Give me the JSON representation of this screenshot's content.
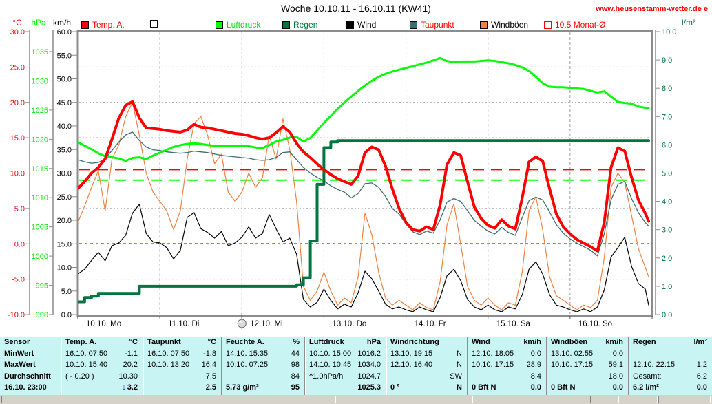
{
  "header": {
    "title": "Woche 10.10.11 - 16.10.11 (KW41)",
    "website": "www.heusenstamm-wetter.de e"
  },
  "legend": {
    "items": [
      {
        "label": "Temp. A.",
        "swatch_fill": "#ff0000",
        "swatch_border": "#000000",
        "text_color": "#ff0000"
      },
      {
        "label": "",
        "swatch_fill": "#ffffff",
        "swatch_border": "#000000",
        "text_color": "#000000"
      },
      {
        "label": "Luftdruck",
        "swatch_fill": "#00ff00",
        "swatch_border": "#000000",
        "text_color": "#00e000"
      },
      {
        "label": "Regen",
        "swatch_fill": "#007540",
        "swatch_border": "#000000",
        "text_color": "#007540"
      },
      {
        "label": "Wind",
        "swatch_fill": "#000000",
        "swatch_border": "#000000",
        "text_color": "#000000"
      },
      {
        "label": "Taupunkt",
        "swatch_fill": "#3d6e6e",
        "swatch_border": "#000000",
        "text_color": "#ff0000"
      },
      {
        "label": "Windböen",
        "swatch_fill": "#f0813f",
        "swatch_border": "#000000",
        "text_color": "#000000"
      },
      {
        "label": "10.5 Monat-Ø",
        "swatch_fill": "#ffffff",
        "swatch_border": "#ff0000",
        "text_color": "#ff0000"
      }
    ]
  },
  "chart_data": {
    "type": "line",
    "title": "Woche 10.10.11 - 16.10.11 (KW41)",
    "x_unit": "hours",
    "sample_interval_hours": 2,
    "x_labels": [
      "10.10. Mo",
      "11.10. Di",
      "12.10. Mi",
      "13.10. Do",
      "14.10. Fr",
      "15.10. Sa",
      "16.10. So"
    ],
    "grid": true,
    "marker_day_index": 2,
    "axes": {
      "temp": {
        "label": "°C",
        "color": "#ff0000",
        "min": -10,
        "max": 30,
        "ticks": [
          "30.0",
          "25.0",
          "20.0",
          "15.0",
          "10.0",
          "5.0",
          "0.0",
          "-5.0",
          "-10.0"
        ]
      },
      "pressure": {
        "label": "hPa",
        "color": "#00ff00",
        "min": 990,
        "max": 1035,
        "ticks": [
          "1035",
          "1030",
          "1025",
          "1020",
          "1015",
          "1010",
          "1005",
          "1000",
          "995",
          "990"
        ]
      },
      "wind": {
        "label": "km/h",
        "color": "#000000",
        "min": 0,
        "max": 60,
        "ticks": [
          "60.0",
          "55.0",
          "50.0",
          "45.0",
          "40.0",
          "35.0",
          "30.0",
          "25.0",
          "20.0",
          "15.0",
          "10.0",
          "5.0",
          "0.0"
        ]
      },
      "rain": {
        "label": "l/m²",
        "color": "#007540",
        "min": 0,
        "max": 10,
        "ticks": [
          "10.0",
          "9.0",
          "8.0",
          "7.0",
          "6.0",
          "5.0",
          "4.0",
          "3.0",
          "2.0",
          "1.0",
          "0.0"
        ]
      }
    },
    "reference_lines": [
      {
        "name": "Monat-Ø Temperatur",
        "axis": "temp",
        "value": 10.5,
        "color": "#ff0000",
        "style": "dashed"
      },
      {
        "name": "Monat-Ø Luftdruck",
        "axis": "pressure",
        "value": 1013,
        "color": "#00ff00",
        "style": "dashed"
      },
      {
        "name": "Nullgradgrenze",
        "axis": "temp",
        "value": 0,
        "color": "#0000ff",
        "style": "dotted"
      }
    ],
    "series": [
      {
        "name": "Windböen",
        "axis": "wind",
        "color": "#f0813f",
        "width": 1.2,
        "values": [
          19.5,
          23,
          27,
          30.5,
          22,
          33,
          36,
          42,
          45,
          38,
          30,
          26,
          24,
          22,
          18,
          22,
          33,
          40.5,
          42,
          38,
          32,
          34,
          26,
          24,
          26,
          30,
          27,
          29,
          38,
          33,
          41.5,
          35,
          24,
          6,
          3,
          5,
          9,
          5,
          2,
          3.5,
          2.5,
          8,
          21.5,
          17,
          9,
          3.5,
          2,
          3,
          2,
          1,
          2.5,
          1.5,
          1,
          7,
          19,
          23.5,
          15,
          6,
          3,
          2,
          3.5,
          2,
          1,
          2.5,
          2,
          9,
          22,
          25,
          18,
          8,
          4,
          3,
          2,
          1,
          2,
          1.5,
          3,
          12,
          27,
          30,
          28,
          21,
          14,
          10,
          8
        ]
      },
      {
        "name": "Wind",
        "axis": "wind",
        "color": "#000000",
        "width": 1.2,
        "values": [
          8.6,
          9.6,
          11.5,
          13.2,
          11.4,
          14.6,
          15.2,
          16.8,
          21.5,
          23.4,
          17.2,
          15.4,
          15.2,
          14.2,
          11.8,
          13.6,
          20.6,
          21.6,
          18.2,
          17.4,
          16.2,
          17.6,
          14.6,
          15.2,
          16.4,
          18.6,
          16.2,
          17.2,
          21.2,
          18.2,
          15.4,
          16.2,
          12.8,
          3.2,
          1.6,
          2.6,
          5.4,
          3,
          1.2,
          2.2,
          1.6,
          4.6,
          9.2,
          7.6,
          5,
          2.2,
          1.2,
          1.6,
          1,
          0.6,
          1.6,
          1,
          0.6,
          3.6,
          8.2,
          9.6,
          7.2,
          3.2,
          1.6,
          1,
          2,
          1,
          0.6,
          1.6,
          1.2,
          4.2,
          9.6,
          11.2,
          8.6,
          4.2,
          2,
          1.6,
          1,
          0.6,
          1.2,
          0.6,
          1.6,
          5.2,
          12.2,
          14.2,
          16.4,
          10.2,
          6.6,
          5.4,
          2
        ]
      },
      {
        "name": "Taupunkt",
        "axis": "temp",
        "color": "#3d6e6e",
        "width": 1.3,
        "values": [
          11.9,
          11.6,
          11.4,
          11.5,
          12,
          13.2,
          14.4,
          15.4,
          15.8,
          14.6,
          13.7,
          13.3,
          13.2,
          13,
          12.9,
          12.8,
          12.9,
          13.1,
          13,
          12.9,
          12.7,
          12.5,
          12.4,
          12.3,
          12.2,
          12.1,
          11.9,
          11.8,
          11.9,
          12.2,
          12.9,
          13,
          11.9,
          10.8,
          10,
          9.4,
          8.9,
          8.2,
          7.7,
          7.3,
          6.5,
          7.1,
          8.5,
          8.6,
          8,
          6.7,
          5,
          4.2,
          2.8,
          1.7,
          1.3,
          1.8,
          1.5,
          3.4,
          5.9,
          6.4,
          6,
          4.7,
          3.3,
          2.5,
          1.8,
          1.4,
          2.3,
          1.6,
          1.2,
          3.7,
          6.1,
          6.6,
          6.2,
          4.5,
          2.7,
          1.5,
          0.7,
          0.1,
          -0.4,
          -0.9,
          -1.7,
          1.4,
          6.2,
          8.4,
          8.8,
          6.4,
          4.4,
          3,
          2.5
        ]
      },
      {
        "name": "Luftdruck",
        "axis": "pressure",
        "color": "#00ff00",
        "width": 3,
        "values": [
          1019.5,
          1018.9,
          1018.3,
          1017.6,
          1017.1,
          1016.9,
          1016.7,
          1016.3,
          1016.8,
          1016.9,
          1016.6,
          1017.2,
          1017.7,
          1018.2,
          1018.7,
          1019,
          1019.2,
          1019.3,
          1019.2,
          1019,
          1018.9,
          1018.9,
          1018.9,
          1018.9,
          1018.9,
          1018.8,
          1018.6,
          1018.5,
          1019,
          1019.6,
          1019.9,
          1020.3,
          1020.4,
          1019.6,
          1020.2,
          1021.5,
          1022.8,
          1024,
          1025.2,
          1026.3,
          1027.3,
          1028.3,
          1029.2,
          1030,
          1030.7,
          1031.2,
          1031.6,
          1031.9,
          1032.2,
          1032.5,
          1032.8,
          1033.1,
          1033.5,
          1033.9,
          1033.4,
          1033.2,
          1033.3,
          1033.3,
          1033.3,
          1033.4,
          1033.5,
          1033.4,
          1033.2,
          1033,
          1032.7,
          1032.3,
          1031.7,
          1030.7,
          1029.6,
          1029,
          1028.9,
          1028.9,
          1028.8,
          1028.7,
          1028.6,
          1028.3,
          1028,
          1028.2,
          1027.3,
          1026.4,
          1026.2,
          1026.1,
          1025.6,
          1025.4,
          1025.3
        ]
      },
      {
        "name": "Regen",
        "axis": "rain",
        "color": "#007540",
        "width": 4,
        "step": true,
        "values": [
          0.45,
          0.6,
          0.65,
          0.75,
          0.75,
          0.75,
          0.75,
          0.75,
          0.75,
          1,
          1,
          1,
          1,
          1,
          1,
          1,
          1,
          1,
          1,
          1,
          1,
          1,
          1,
          1,
          1,
          1,
          1,
          1,
          1,
          1,
          1,
          1,
          1.05,
          1.3,
          2.6,
          4.6,
          5.9,
          6.1,
          6.15,
          6.15,
          6.15,
          6.15,
          6.15,
          6.15,
          6.15,
          6.15,
          6.15,
          6.15,
          6.15,
          6.15,
          6.15,
          6.15,
          6.15,
          6.15,
          6.15,
          6.15,
          6.15,
          6.15,
          6.15,
          6.15,
          6.15,
          6.15,
          6.15,
          6.15,
          6.15,
          6.15,
          6.15,
          6.15,
          6.15,
          6.15,
          6.15,
          6.15,
          6.15,
          6.15,
          6.15,
          6.15,
          6.15,
          6.15,
          6.15,
          6.15,
          6.15,
          6.15,
          6.15,
          6.15,
          6.15
        ]
      },
      {
        "name": "Temp. A.",
        "axis": "temp",
        "color": "#ff0000",
        "width": 4,
        "values": [
          7.8,
          8.8,
          10,
          10.8,
          12,
          14.8,
          17.8,
          19.6,
          20.1,
          17.8,
          16.4,
          16.3,
          16.2,
          16,
          15.9,
          15.8,
          16.1,
          16.9,
          16.5,
          16.4,
          16.2,
          16,
          15.8,
          15.6,
          15.5,
          15.3,
          15,
          14.8,
          15,
          15.7,
          16.6,
          15.8,
          14.2,
          13,
          12.2,
          11.3,
          10.5,
          9.8,
          9.2,
          8.8,
          8.4,
          9.6,
          12.9,
          13.7,
          13.3,
          11,
          7.8,
          5,
          3,
          2,
          1.8,
          2.4,
          2,
          5.5,
          11.2,
          12.9,
          12.5,
          8.8,
          5.2,
          3.6,
          2.6,
          2.2,
          3.4,
          2.5,
          2.1,
          6.5,
          11.6,
          12.3,
          11.7,
          7.8,
          4.2,
          2.4,
          1.4,
          0.6,
          0.1,
          -0.4,
          -1,
          3,
          10.8,
          13.6,
          13.1,
          9.4,
          6.2,
          4.3,
          3.2
        ]
      }
    ]
  },
  "table": {
    "bg": "#c8f4f4",
    "row_labels": [
      "Sensor",
      "MinWert",
      "MaxWert",
      "Durchschnitt",
      "16.10. 23:00"
    ],
    "columns": [
      {
        "name": "Temp. A.",
        "unit": "°C",
        "min": [
          "16.10. 07:50",
          "-1.1"
        ],
        "max": [
          "10.10. 15:40",
          "20.2"
        ],
        "avg": [
          "( - 0.20 )",
          "10.30"
        ],
        "cur": [
          "",
          "3.2"
        ],
        "cur_arrow": "↓"
      },
      {
        "name": "Taupunkt",
        "unit": "°C",
        "min": [
          "16.10. 07:50",
          "-1.8"
        ],
        "max": [
          "10.10. 13:20",
          "16.4"
        ],
        "avg": [
          "",
          "7.5"
        ],
        "cur": [
          "",
          "2.5"
        ]
      },
      {
        "name": "Feuchte A.",
        "unit": "%",
        "min": [
          "14.10. 15:35",
          "44"
        ],
        "max": [
          "10.10. 07:25",
          "98"
        ],
        "avg": [
          "",
          "84"
        ],
        "cur": [
          "5.73 g/m³",
          "95"
        ]
      },
      {
        "name": "Luftdruck",
        "unit": "hPa",
        "min": [
          "10.10. 15:00",
          "1016.2"
        ],
        "max": [
          "14.10. 10:45",
          "1034.0"
        ],
        "avg": [
          "^1.0hPa/h",
          "1024.7"
        ],
        "cur": [
          "",
          "1025.3"
        ]
      },
      {
        "name": "Windrichtung",
        "unit": "",
        "min": [
          "13.10. 19:15",
          "N"
        ],
        "max": [
          "12.10. 16:40",
          "N"
        ],
        "avg": [
          "",
          "SW"
        ],
        "cur": [
          "0 °",
          "N"
        ]
      },
      {
        "name": "Wind",
        "unit": "km/h",
        "min": [
          "12.10. 18:05",
          "0.0"
        ],
        "max": [
          "10.10. 17:15",
          "28.9"
        ],
        "avg": [
          "",
          "8.4"
        ],
        "cur": [
          "0 Bft N",
          "0.0"
        ]
      },
      {
        "name": "Windböen",
        "unit": "km/h",
        "min": [
          "13.10. 02:55",
          "0.0"
        ],
        "max": [
          "10.10. 17:15",
          "59.1"
        ],
        "avg": [
          "",
          "18.0"
        ],
        "cur": [
          "0 Bft N",
          "0.0"
        ]
      },
      {
        "name": "Regen",
        "unit": "l/m²",
        "min": [
          "",
          ""
        ],
        "max": [
          "12.10. 22:15",
          "1.2"
        ],
        "avg": [
          "Gesamt:",
          "6.2"
        ],
        "cur": [
          "6.2 l/m²",
          "0.0"
        ]
      }
    ]
  },
  "status_bar": {
    "panes": [
      "",
      "",
      "",
      "",
      "",
      ""
    ]
  }
}
